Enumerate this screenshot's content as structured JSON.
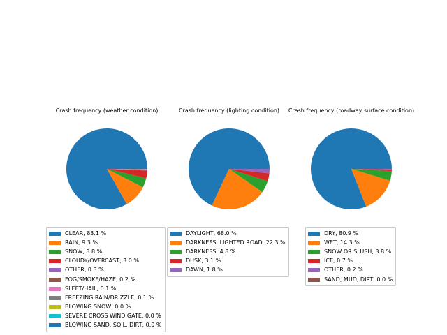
{
  "chart_data": [
    {
      "type": "pie",
      "title": "Crash frequency (weather condition)",
      "legend_position": "below",
      "slices": [
        {
          "label": "CLEAR, 83.1 %",
          "value": 83.1,
          "color": "#1f77b4"
        },
        {
          "label": "RAIN, 9.3 %",
          "value": 9.3,
          "color": "#ff7f0e"
        },
        {
          "label": "SNOW, 3.8 %",
          "value": 3.8,
          "color": "#2ca02c"
        },
        {
          "label": "CLOUDY/OVERCAST, 3.0 %",
          "value": 3.0,
          "color": "#d62728"
        },
        {
          "label": "OTHER, 0.3 %",
          "value": 0.3,
          "color": "#9467bd"
        },
        {
          "label": "FOG/SMOKE/HAZE, 0.2 %",
          "value": 0.2,
          "color": "#8c564b"
        },
        {
          "label": "SLEET/HAIL, 0.1 %",
          "value": 0.1,
          "color": "#e377c2"
        },
        {
          "label": "FREEZING RAIN/DRIZZLE, 0.1 %",
          "value": 0.1,
          "color": "#7f7f7f"
        },
        {
          "label": "BLOWING SNOW, 0.0 %",
          "value": 0.0,
          "color": "#bcbd22"
        },
        {
          "label": "SEVERE CROSS WIND GATE, 0.0 %",
          "value": 0.0,
          "color": "#17becf"
        },
        {
          "label": "BLOWING SAND, SOIL, DIRT, 0.0 %",
          "value": 0.0,
          "color": "#1f77b4"
        }
      ]
    },
    {
      "type": "pie",
      "title": "Crash frequency (lighting condition)",
      "legend_position": "below",
      "slices": [
        {
          "label": "DAYLIGHT, 68.0 %",
          "value": 68.0,
          "color": "#1f77b4"
        },
        {
          "label": "DARKNESS, LIGHTED ROAD, 22.3 %",
          "value": 22.3,
          "color": "#ff7f0e"
        },
        {
          "label": "DARKNESS, 4.8 %",
          "value": 4.8,
          "color": "#2ca02c"
        },
        {
          "label": "DUSK, 3.1 %",
          "value": 3.1,
          "color": "#d62728"
        },
        {
          "label": "DAWN, 1.8 %",
          "value": 1.8,
          "color": "#9467bd"
        }
      ]
    },
    {
      "type": "pie",
      "title": "Crash frequency (roadway surface condition)",
      "legend_position": "below",
      "slices": [
        {
          "label": "DRY, 80.9 %",
          "value": 80.9,
          "color": "#1f77b4"
        },
        {
          "label": "WET, 14.3 %",
          "value": 14.3,
          "color": "#ff7f0e"
        },
        {
          "label": "SNOW OR SLUSH, 3.8 %",
          "value": 3.8,
          "color": "#2ca02c"
        },
        {
          "label": "ICE, 0.7 %",
          "value": 0.7,
          "color": "#d62728"
        },
        {
          "label": "OTHER, 0.2 %",
          "value": 0.2,
          "color": "#9467bd"
        },
        {
          "label": "SAND, MUD, DIRT, 0.0 %",
          "value": 0.0,
          "color": "#8c564b"
        }
      ]
    }
  ]
}
